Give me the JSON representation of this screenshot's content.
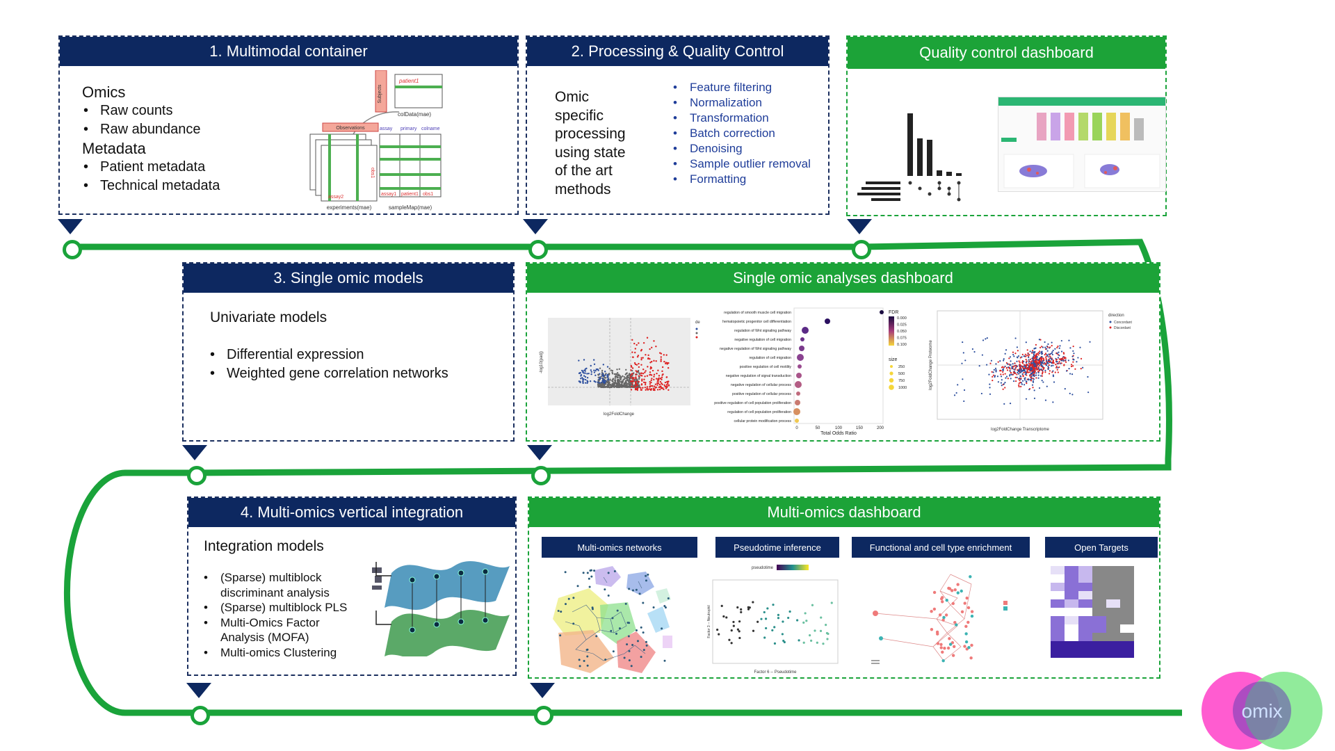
{
  "boxes": {
    "b1": {
      "title": "1. Multimodal container",
      "omics_heading": "Omics",
      "omics_items": [
        "Raw counts",
        "Raw abundance"
      ],
      "meta_heading": "Metadata",
      "meta_items": [
        "Patient metadata",
        "Technical metadata"
      ],
      "diagram": {
        "subjects": "Subjects",
        "patient1": "patient1",
        "coldata": "colData(mae)",
        "observations": "Observations",
        "assay": "assay",
        "primary": "primary",
        "colname": "colname",
        "obs1": "obs1",
        "assay1": "assay1",
        "assay2": "assay2",
        "patient1b": "patient1",
        "obs1b": "obs1",
        "experiments": "experiments(mae)",
        "samplemap": "sampleMap(mae)"
      }
    },
    "b2": {
      "title": "2. Processing & Quality Control",
      "left_text": [
        "Omic",
        "specific",
        "processing",
        "using state",
        "of the art",
        "methods"
      ],
      "items": [
        "Feature filtering",
        "Normalization",
        "Transformation",
        "Batch correction",
        "Denoising",
        "Sample outlier removal",
        "Formatting"
      ]
    },
    "b3": {
      "title": "Quality control dashboard"
    },
    "b4": {
      "title": "3. Single omic models",
      "heading": "Univariate models",
      "items": [
        "Differential expression",
        "Weighted gene correlation networks"
      ]
    },
    "b5": {
      "title": "Single omic analyses dashboard"
    },
    "b6": {
      "title": "4. Multi-omics vertical integration",
      "heading": "Integration models",
      "items": [
        "(Sparse) multiblock discriminant analysis",
        "(Sparse) multiblock PLS",
        "Multi-Omics Factor Analysis (MOFA)",
        "Multi-omics Clustering"
      ]
    },
    "b7": {
      "title": "Multi-omics dashboard",
      "tabs": [
        "Multi-omics networks",
        "Pseudotime inference",
        "Functional and cell type enrichment",
        "Open Targets"
      ]
    }
  },
  "dotplot": {
    "terms": [
      "regulation of smooth muscle cell migration",
      "hematopoietic progenitor cell differentiation",
      "regulation of Wnt signaling pathway",
      "negative regulation of cell migration",
      "negative regulation of Wnt signaling pathway",
      "regulation of cell migration",
      "positive regulation of cell motility",
      "negative regulation of signal transduction",
      "negative regulation of cellular process",
      "positive regulation of cellular process",
      "positive regulation of cell population proliferation",
      "regulation of cell population proliferation",
      "cellular protein modification process"
    ],
    "xlabel": "Total Odds Ratio",
    "ticks": [
      "0",
      "50",
      "100",
      "150",
      "200"
    ],
    "fdr_label": "FDR",
    "fdr_ticks": [
      "0.000",
      "0.025",
      "0.050",
      "0.075",
      "0.100"
    ],
    "size_label": "size",
    "size_ticks": [
      "250",
      "500",
      "750",
      "1000"
    ]
  },
  "volcano": {
    "xlabel": "log2FoldChange",
    "ylabel": "-log10(padj)",
    "legend": "de"
  },
  "scatter": {
    "xlabel": "log2FoldChange Transcriptome",
    "ylabel": "log2FoldChange Proteome",
    "legend_title": "direction",
    "legend_items": [
      "Concordant",
      "Discordant"
    ]
  },
  "pseudotime": {
    "label": "pseudotime",
    "xlabel": "Factor 6 -- Pseudotime",
    "ylabel": "Factor 3 -- Neutrophil"
  },
  "logo": {
    "text": "omix"
  },
  "colors": {
    "navy": "#0d2860",
    "green": "#1ca338",
    "pink": "#ff3fc8",
    "mint": "#7ee88a"
  }
}
